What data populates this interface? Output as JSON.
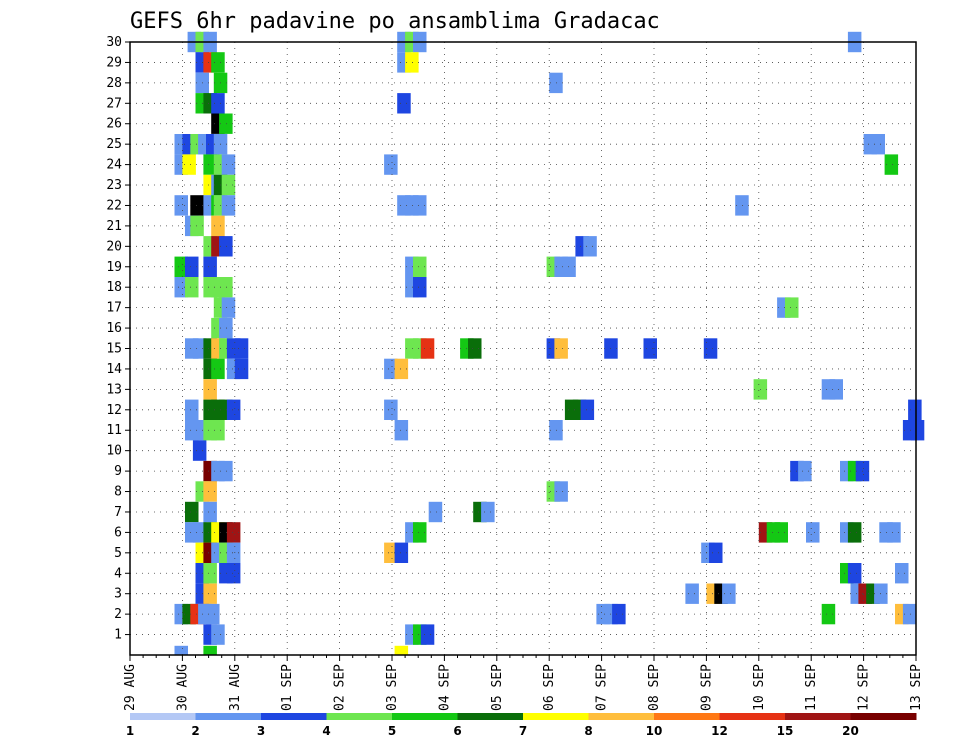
{
  "chart_data": {
    "type": "heatmap",
    "title": "GEFS 6hr padavine po ansamblima Gradacac",
    "x_ticks": [
      "29 AUG",
      "30 AUG",
      "31 AUG",
      "01 SEP",
      "02 SEP",
      "03 SEP",
      "04 SEP",
      "05 SEP",
      "06 SEP",
      "07 SEP",
      "08 SEP",
      "09 SEP",
      "10 SEP",
      "11 SEP",
      "12 SEP",
      "13 SEP"
    ],
    "y_ticks": [
      1,
      2,
      3,
      4,
      5,
      6,
      7,
      8,
      9,
      10,
      11,
      12,
      13,
      14,
      15,
      16,
      17,
      18,
      19,
      20,
      21,
      22,
      23,
      24,
      25,
      26,
      27,
      28,
      29,
      30
    ],
    "x_range": [
      "29 AUG 00Z",
      "13 SEP 00Z"
    ],
    "y_range": [
      0,
      30
    ],
    "grid": "dotted",
    "colorbar": {
      "labels": [
        "1",
        "2",
        "3",
        "4",
        "5",
        "6",
        "7",
        "8",
        "10",
        "12",
        "15",
        "20"
      ],
      "colors": [
        "#b4c8f5",
        "#6496f0",
        "#1e46e1",
        "#6ee650",
        "#14c814",
        "#0a6e0a",
        "#ffff00",
        "#ffbe3c",
        "#ff7814",
        "#e63214",
        "#a01414",
        "#780000"
      ]
    },
    "cells": [
      [
        30,
        1.1,
        1
      ],
      [
        30,
        1.25,
        3
      ],
      [
        30,
        1.4,
        1
      ],
      [
        30,
        5.1,
        1
      ],
      [
        30,
        5.25,
        3
      ],
      [
        30,
        5.4,
        1
      ],
      [
        30,
        13.7,
        1
      ],
      [
        29,
        1.25,
        2
      ],
      [
        29,
        1.4,
        9
      ],
      [
        29,
        1.55,
        4
      ],
      [
        29,
        5.1,
        1
      ],
      [
        29,
        5.25,
        6
      ],
      [
        28,
        1.25,
        1
      ],
      [
        28,
        1.6,
        4
      ],
      [
        28,
        8.0,
        1
      ],
      [
        27,
        1.25,
        4
      ],
      [
        27,
        1.4,
        5
      ],
      [
        27,
        1.55,
        2
      ],
      [
        27,
        5.1,
        2
      ],
      [
        26,
        1.55,
        12
      ],
      [
        26,
        1.7,
        4
      ],
      [
        25,
        0.85,
        1
      ],
      [
        25,
        1.0,
        2
      ],
      [
        25,
        1.15,
        3
      ],
      [
        25,
        1.3,
        1
      ],
      [
        25,
        1.45,
        2
      ],
      [
        25,
        1.6,
        1
      ],
      [
        25,
        14.0,
        1
      ],
      [
        25,
        14.15,
        1
      ],
      [
        24,
        0.85,
        1
      ],
      [
        24,
        1.0,
        6
      ],
      [
        24,
        1.4,
        4
      ],
      [
        24,
        1.6,
        3
      ],
      [
        24,
        1.75,
        1
      ],
      [
        24,
        4.85,
        1
      ],
      [
        24,
        14.4,
        4
      ],
      [
        23,
        1.4,
        6
      ],
      [
        23,
        1.55,
        1
      ],
      [
        23,
        1.6,
        5
      ],
      [
        23,
        1.75,
        3
      ],
      [
        22,
        0.85,
        1
      ],
      [
        22,
        1.15,
        12
      ],
      [
        22,
        1.4,
        1
      ],
      [
        22,
        1.55,
        4
      ],
      [
        22,
        1.6,
        3
      ],
      [
        22,
        1.75,
        1
      ],
      [
        22,
        5.1,
        1
      ],
      [
        22,
        5.25,
        1
      ],
      [
        22,
        5.4,
        1
      ],
      [
        22,
        11.55,
        1
      ],
      [
        21,
        1.05,
        1
      ],
      [
        21,
        1.15,
        3
      ],
      [
        21,
        1.55,
        7
      ],
      [
        20,
        1.4,
        3
      ],
      [
        20,
        1.55,
        10
      ],
      [
        20,
        1.7,
        2
      ],
      [
        20,
        8.5,
        2
      ],
      [
        20,
        8.65,
        1
      ],
      [
        19,
        0.85,
        4
      ],
      [
        19,
        1.05,
        2
      ],
      [
        19,
        1.4,
        2
      ],
      [
        19,
        5.25,
        1
      ],
      [
        19,
        5.4,
        3
      ],
      [
        19,
        7.95,
        3
      ],
      [
        19,
        8.1,
        1
      ],
      [
        19,
        8.25,
        1
      ],
      [
        18,
        0.85,
        1
      ],
      [
        18,
        1.05,
        3
      ],
      [
        18,
        1.4,
        3
      ],
      [
        18,
        1.55,
        3
      ],
      [
        18,
        1.7,
        3
      ],
      [
        18,
        5.25,
        1
      ],
      [
        18,
        5.4,
        2
      ],
      [
        17,
        1.6,
        3
      ],
      [
        17,
        1.75,
        1
      ],
      [
        17,
        12.35,
        1
      ],
      [
        17,
        12.5,
        3
      ],
      [
        16,
        1.55,
        3
      ],
      [
        16,
        1.7,
        1
      ],
      [
        15,
        1.05,
        1
      ],
      [
        15,
        1.2,
        1
      ],
      [
        15,
        1.4,
        5
      ],
      [
        15,
        1.55,
        7
      ],
      [
        15,
        1.7,
        3
      ],
      [
        15,
        1.85,
        2
      ],
      [
        15,
        2.0,
        2
      ],
      [
        15,
        5.25,
        3
      ],
      [
        15,
        5.4,
        3
      ],
      [
        15,
        5.55,
        9
      ],
      [
        15,
        6.3,
        4
      ],
      [
        15,
        6.45,
        5
      ],
      [
        15,
        7.95,
        2
      ],
      [
        15,
        8.1,
        7
      ],
      [
        15,
        9.05,
        2
      ],
      [
        15,
        9.8,
        2
      ],
      [
        15,
        10.95,
        2
      ],
      [
        14,
        1.4,
        5
      ],
      [
        14,
        1.55,
        4
      ],
      [
        14,
        1.85,
        1
      ],
      [
        14,
        2.0,
        2
      ],
      [
        14,
        4.85,
        1
      ],
      [
        14,
        5.05,
        7
      ],
      [
        13,
        1.4,
        7
      ],
      [
        13,
        11.9,
        3
      ],
      [
        13,
        13.2,
        1
      ],
      [
        13,
        13.35,
        1
      ],
      [
        12,
        1.4,
        5
      ],
      [
        12,
        1.55,
        5
      ],
      [
        12,
        1.7,
        5
      ],
      [
        12,
        1.85,
        2
      ],
      [
        12,
        1.05,
        1
      ],
      [
        12,
        4.85,
        1
      ],
      [
        12,
        8.3,
        5
      ],
      [
        12,
        8.45,
        5
      ],
      [
        12,
        8.6,
        2
      ],
      [
        12,
        14.85,
        2
      ],
      [
        11,
        1.05,
        1
      ],
      [
        11,
        1.2,
        1
      ],
      [
        11,
        1.4,
        3
      ],
      [
        11,
        1.55,
        3
      ],
      [
        11,
        5.05,
        1
      ],
      [
        11,
        8.0,
        1
      ],
      [
        11,
        14.75,
        2
      ],
      [
        11,
        14.9,
        2
      ],
      [
        10,
        1.2,
        2
      ],
      [
        9,
        1.4,
        11
      ],
      [
        9,
        1.55,
        1
      ],
      [
        9,
        1.7,
        1
      ],
      [
        9,
        12.6,
        2
      ],
      [
        9,
        12.75,
        1
      ],
      [
        9,
        13.55,
        1
      ],
      [
        9,
        13.7,
        4
      ],
      [
        9,
        13.85,
        2
      ],
      [
        8,
        1.25,
        3
      ],
      [
        8,
        1.4,
        7
      ],
      [
        8,
        7.95,
        3
      ],
      [
        8,
        8.1,
        1
      ],
      [
        7,
        1.05,
        5
      ],
      [
        7,
        1.4,
        1
      ],
      [
        7,
        5.7,
        1
      ],
      [
        7,
        6.55,
        5
      ],
      [
        7,
        6.7,
        1
      ],
      [
        6,
        1.05,
        1
      ],
      [
        6,
        1.2,
        1
      ],
      [
        6,
        1.4,
        5
      ],
      [
        6,
        1.55,
        6
      ],
      [
        6,
        1.7,
        12
      ],
      [
        6,
        1.85,
        10
      ],
      [
        6,
        5.25,
        1
      ],
      [
        6,
        5.4,
        4
      ],
      [
        6,
        12.0,
        10
      ],
      [
        6,
        12.15,
        4
      ],
      [
        6,
        12.3,
        4
      ],
      [
        6,
        12.9,
        1
      ],
      [
        6,
        13.55,
        1
      ],
      [
        6,
        13.7,
        5
      ],
      [
        6,
        14.3,
        1
      ],
      [
        6,
        14.45,
        1
      ],
      [
        5,
        1.25,
        6
      ],
      [
        5,
        1.4,
        11
      ],
      [
        5,
        1.55,
        1
      ],
      [
        5,
        1.7,
        3
      ],
      [
        5,
        1.85,
        1
      ],
      [
        5,
        4.85,
        7
      ],
      [
        5,
        5.05,
        2
      ],
      [
        5,
        10.9,
        1
      ],
      [
        5,
        11.05,
        2
      ],
      [
        4,
        1.25,
        2
      ],
      [
        4,
        1.4,
        3
      ],
      [
        4,
        1.7,
        2
      ],
      [
        4,
        1.85,
        2
      ],
      [
        4,
        13.55,
        4
      ],
      [
        4,
        13.7,
        2
      ],
      [
        4,
        14.6,
        1
      ],
      [
        3,
        1.25,
        2
      ],
      [
        3,
        1.4,
        7
      ],
      [
        3,
        10.6,
        1
      ],
      [
        3,
        11.0,
        7
      ],
      [
        3,
        11.15,
        12
      ],
      [
        3,
        11.3,
        1
      ],
      [
        3,
        13.75,
        1
      ],
      [
        3,
        13.9,
        10
      ],
      [
        3,
        14.05,
        5
      ],
      [
        3,
        14.2,
        1
      ],
      [
        2,
        0.85,
        1
      ],
      [
        2,
        1.0,
        5
      ],
      [
        2,
        1.15,
        9
      ],
      [
        2,
        1.3,
        1
      ],
      [
        2,
        1.45,
        1
      ],
      [
        2,
        8.9,
        1
      ],
      [
        2,
        9.05,
        1
      ],
      [
        2,
        9.2,
        2
      ],
      [
        2,
        13.2,
        4
      ],
      [
        2,
        14.6,
        7
      ],
      [
        2,
        14.75,
        1
      ],
      [
        1,
        1.4,
        2
      ],
      [
        1,
        1.55,
        1
      ],
      [
        1,
        5.25,
        1
      ],
      [
        1,
        5.4,
        4
      ],
      [
        1,
        5.55,
        2
      ]
    ],
    "edge_cells": [
      [
        0,
        0.85,
        1
      ],
      [
        0,
        1.4,
        4
      ],
      [
        0,
        5.05,
        6
      ]
    ]
  }
}
